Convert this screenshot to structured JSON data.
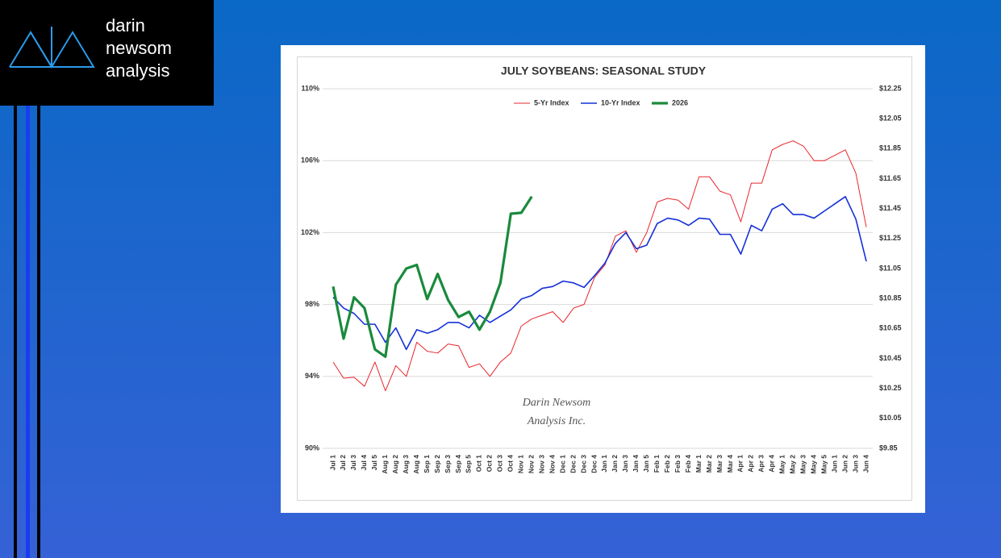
{
  "logo": [
    "darin",
    "newsom",
    "analysis"
  ],
  "chart_data": {
    "type": "line",
    "title": "JULY SOYBEANS: SEASONAL STUDY",
    "annotations": [
      "Darin Newsom",
      "Analysis Inc."
    ],
    "categories": [
      "Jul 1",
      "Jul 2",
      "Jul 3",
      "Jul 4",
      "Jul 5",
      "Aug 1",
      "Aug 2",
      "Aug 3",
      "Aug 4",
      "Sep 1",
      "Sep 2",
      "Sep 3",
      "Sep 4",
      "Sep 5",
      "Oct 1",
      "Oct 2",
      "Oct 3",
      "Oct 4",
      "Nov 1",
      "Nov 2",
      "Nov 3",
      "Nov 4",
      "Dec 1",
      "Dec 2",
      "Dec 3",
      "Dec 4",
      "Jan 1",
      "Jan 2",
      "Jan 3",
      "Jan 4",
      "Jan 5",
      "Feb 1",
      "Feb 2",
      "Feb 3",
      "Feb 4",
      "Mar 1",
      "Mar 2",
      "Mar 3",
      "Mar 4",
      "Apr 1",
      "Apr 2",
      "Apr 3",
      "Apr 4",
      "May 1",
      "May 2",
      "May 3",
      "May 4",
      "May 5",
      "Jun 1",
      "Jun 2",
      "Jun 3",
      "Jun 4"
    ],
    "series": [
      {
        "name": "5-Yr Index",
        "color": "#e8262b",
        "width": 1,
        "values": [
          94.8,
          93.9,
          93.95,
          93.45,
          94.8,
          93.2,
          94.6,
          94.0,
          95.9,
          95.4,
          95.3,
          95.8,
          95.7,
          94.5,
          94.7,
          94.0,
          94.8,
          95.3,
          96.8,
          97.2,
          97.4,
          97.6,
          97.0,
          97.8,
          98.0,
          99.5,
          100.2,
          101.8,
          102.1,
          100.9,
          102.0,
          103.7,
          103.9,
          103.8,
          103.3,
          105.1,
          105.1,
          104.3,
          104.1,
          102.6,
          104.75,
          104.75,
          106.6,
          106.9,
          107.1,
          106.8,
          106.0,
          106.0,
          106.3,
          106.6,
          105.3,
          102.3
        ]
      },
      {
        "name": "10-Yr Index",
        "color": "#1530d8",
        "width": 1.6,
        "values": [
          98.4,
          97.8,
          97.5,
          96.9,
          96.9,
          95.9,
          96.7,
          95.5,
          96.6,
          96.4,
          96.6,
          97.0,
          97.0,
          96.7,
          97.4,
          97.0,
          97.35,
          97.7,
          98.3,
          98.5,
          98.9,
          99.0,
          99.3,
          99.2,
          98.95,
          99.6,
          100.3,
          101.4,
          102.0,
          101.1,
          101.3,
          102.5,
          102.8,
          102.7,
          102.4,
          102.8,
          102.75,
          101.9,
          101.9,
          100.8,
          102.4,
          102.1,
          103.3,
          103.6,
          103.0,
          103.0,
          102.8,
          103.2,
          103.6,
          104.0,
          102.75,
          100.4
        ]
      },
      {
        "name": "2026",
        "color": "#1a8a3c",
        "width": 3.2,
        "values": [
          99.0,
          96.1,
          98.4,
          97.8,
          95.5,
          95.1,
          99.1,
          100.0,
          100.2,
          98.3,
          99.7,
          98.25,
          97.3,
          97.6,
          96.6,
          97.6,
          99.2,
          103.05,
          103.1,
          104.0,
          null,
          null,
          null,
          null,
          null,
          null,
          null,
          null,
          null,
          null,
          null,
          null,
          null,
          null,
          null,
          null,
          null,
          null,
          null,
          null,
          null,
          null,
          null,
          null,
          null,
          null,
          null,
          null,
          null,
          null,
          null,
          null
        ]
      }
    ],
    "ylim": [
      90,
      110
    ],
    "yticks": [
      {
        "value": 90,
        "label": "90%"
      },
      {
        "value": 94,
        "label": "94%"
      },
      {
        "value": 98,
        "label": "98%"
      },
      {
        "value": 102,
        "label": "102%"
      },
      {
        "value": 106,
        "label": "106%"
      },
      {
        "value": 110,
        "label": "110%"
      }
    ],
    "y2lim": [
      9.85,
      12.25
    ],
    "y2ticks": [
      {
        "value": 9.85,
        "label": "$9.85"
      },
      {
        "value": 10.05,
        "label": "$10.05"
      },
      {
        "value": 10.25,
        "label": "$10.25"
      },
      {
        "value": 10.45,
        "label": "$10.45"
      },
      {
        "value": 10.65,
        "label": "$10.65"
      },
      {
        "value": 10.85,
        "label": "$10.85"
      },
      {
        "value": 11.05,
        "label": "$11.05"
      },
      {
        "value": 11.25,
        "label": "$11.25"
      },
      {
        "value": 11.45,
        "label": "$11.45"
      },
      {
        "value": 11.65,
        "label": "$11.65"
      },
      {
        "value": 11.85,
        "label": "$11.85"
      },
      {
        "value": 12.05,
        "label": "$12.05"
      },
      {
        "value": 12.25,
        "label": "$12.25"
      }
    ],
    "grid": true,
    "legend": "top"
  }
}
